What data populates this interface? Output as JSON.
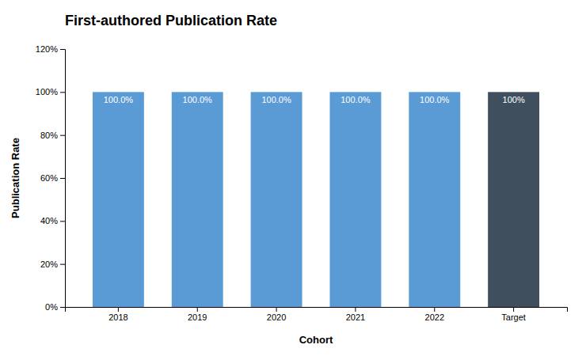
{
  "chart_data": {
    "type": "bar",
    "title": "First-authored Publication Rate",
    "x_label": "Cohort",
    "y_label": "Publication Rate",
    "categories": [
      "2018",
      "2019",
      "2020",
      "2021",
      "2022",
      "Target"
    ],
    "values": [
      1.0,
      1.0,
      1.0,
      1.0,
      1.0,
      1.0
    ],
    "value_labels": [
      "100.0%",
      "100.0%",
      "100.0%",
      "100.0%",
      "100.0%",
      "100%"
    ],
    "data_labels": true,
    "colors": [
      "#5B9BD5",
      "#5B9BD5",
      "#5B9BD5",
      "#5B9BD5",
      "#5B9BD5",
      "#404F5E"
    ],
    "ylim": [
      0,
      1.2
    ],
    "yticks": [
      {
        "value": 0,
        "label": "0%"
      },
      {
        "value": 0.2,
        "label": "20%"
      },
      {
        "value": 0.4,
        "label": "40%"
      },
      {
        "value": 0.6,
        "label": "60%"
      },
      {
        "value": 0.8,
        "label": "80%"
      },
      {
        "value": 1.0,
        "label": "100%"
      },
      {
        "value": 1.2,
        "label": "120%"
      }
    ],
    "grid": false
  }
}
